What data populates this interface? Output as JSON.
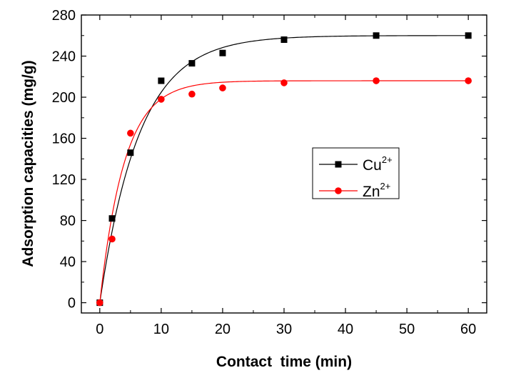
{
  "chart_data": {
    "type": "scatter",
    "xlabel": "Contact  time (min)",
    "ylabel": "Adsorption capacities (mg/g)",
    "xlim": [
      -3,
      63
    ],
    "ylim": [
      -10,
      280
    ],
    "xticks": [
      0,
      10,
      20,
      30,
      40,
      50,
      60
    ],
    "yticks": [
      0,
      40,
      80,
      120,
      160,
      200,
      240,
      280
    ],
    "grid": false,
    "legend_position": "center-right",
    "series": [
      {
        "name": "Cu",
        "superscript": "2+",
        "marker": "square",
        "color": "#000000",
        "x": [
          0,
          2,
          5,
          10,
          15,
          20,
          30,
          45,
          60
        ],
        "y": [
          0,
          82,
          146,
          216,
          233,
          243,
          256,
          260,
          260
        ],
        "fit_curve": {
          "qe": 260,
          "k": 0.155
        }
      },
      {
        "name": "Zn",
        "superscript": "2+",
        "marker": "circle",
        "color": "#ff0000",
        "x": [
          0,
          2,
          5,
          10,
          15,
          20,
          30,
          45,
          60
        ],
        "y": [
          0,
          62,
          165,
          198,
          203,
          209,
          214,
          216,
          216
        ],
        "fit_curve": {
          "qe": 216,
          "k": 0.25
        }
      }
    ]
  }
}
